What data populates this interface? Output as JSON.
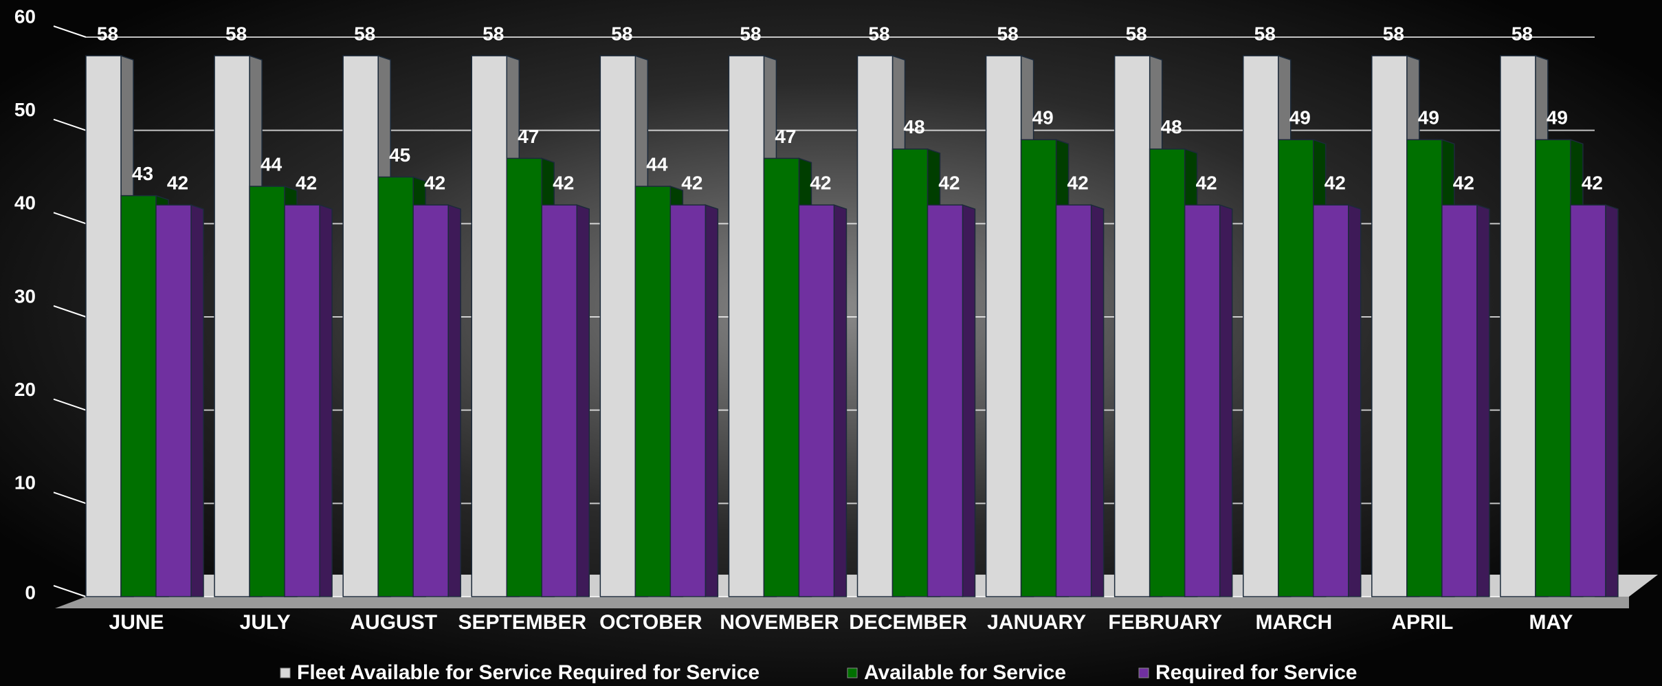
{
  "chart_data": {
    "type": "bar",
    "categories": [
      "JUNE",
      "JULY",
      "AUGUST",
      "SEPTEMBER",
      "OCTOBER",
      "NOVEMBER",
      "DECEMBER",
      "JANUARY",
      "FEBRUARY",
      "MARCH",
      "APRIL",
      "MAY"
    ],
    "series": [
      {
        "name": "Fleet Available for Service Required for Service",
        "color": "#d9d9d9",
        "values": [
          58,
          58,
          58,
          58,
          58,
          58,
          58,
          58,
          58,
          58,
          58,
          58
        ]
      },
      {
        "name": "Available for Service",
        "color": "#007000",
        "values": [
          43,
          44,
          45,
          47,
          44,
          47,
          48,
          49,
          48,
          49,
          49,
          49
        ]
      },
      {
        "name": "Required for Service",
        "color": "#7030a0",
        "values": [
          42,
          42,
          42,
          42,
          42,
          42,
          42,
          42,
          42,
          42,
          42,
          42
        ]
      }
    ],
    "ylim": [
      0,
      60
    ],
    "yticks": [
      0,
      10,
      20,
      30,
      40,
      50,
      60
    ],
    "grid": true,
    "legend": "bottom"
  }
}
